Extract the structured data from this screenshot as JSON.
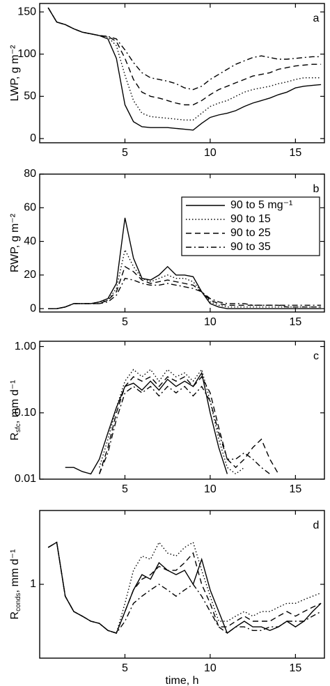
{
  "chart_data": [
    {
      "type": "line",
      "annotation": "a",
      "ylabel": {
        "main": "LWP, g m⁻²"
      },
      "xlim": [
        0,
        16.7
      ],
      "xticks": [
        5,
        10,
        15
      ],
      "ylim": [
        -5,
        160
      ],
      "yticks": [
        0,
        50,
        100,
        150
      ],
      "log": false,
      "x": [
        0.5,
        1,
        1.5,
        2,
        2.5,
        3,
        3.5,
        4,
        4.5,
        5,
        5.5,
        6,
        6.5,
        7,
        7.5,
        8,
        8.5,
        9,
        9.5,
        10,
        10.5,
        11,
        11.5,
        12,
        12.5,
        13,
        13.5,
        14,
        14.5,
        15,
        15.5,
        16,
        16.5
      ],
      "series": [
        {
          "color": "#000000",
          "dash": "solid",
          "values": [
            155,
            138,
            135,
            130,
            126,
            124,
            122,
            118,
            95,
            40,
            20,
            14,
            13,
            13,
            13,
            12,
            11,
            10,
            18,
            25,
            28,
            30,
            33,
            38,
            42,
            45,
            48,
            52,
            55,
            60,
            62,
            63,
            64
          ]
        },
        {
          "color": "#000000",
          "dash": "dotted",
          "values": [
            155,
            138,
            135,
            130,
            126,
            124,
            122,
            120,
            110,
            75,
            45,
            30,
            26,
            25,
            24,
            23,
            22,
            22,
            30,
            38,
            42,
            45,
            50,
            55,
            58,
            60,
            62,
            65,
            67,
            70,
            72,
            72,
            72
          ]
        },
        {
          "color": "#000000",
          "dash": "dashed",
          "values": [
            155,
            138,
            135,
            130,
            126,
            124,
            122,
            121,
            115,
            95,
            70,
            55,
            50,
            48,
            45,
            42,
            40,
            40,
            45,
            52,
            58,
            62,
            66,
            70,
            74,
            76,
            78,
            82,
            84,
            86,
            87,
            88,
            88
          ]
        },
        {
          "color": "#000000",
          "dash": "dashdot",
          "values": [
            155,
            138,
            135,
            130,
            126,
            124,
            122,
            121,
            118,
            105,
            90,
            78,
            72,
            70,
            68,
            65,
            60,
            58,
            62,
            70,
            76,
            82,
            88,
            92,
            96,
            98,
            96,
            94,
            94,
            95,
            96,
            97,
            97
          ]
        }
      ]
    },
    {
      "type": "line",
      "annotation": "b",
      "ylabel": {
        "main": "RWP, g m⁻²"
      },
      "xlim": [
        0,
        16.7
      ],
      "xticks": [
        5,
        10,
        15
      ],
      "ylim": [
        -2,
        80
      ],
      "yticks": [
        0,
        20,
        40,
        60,
        80
      ],
      "log": false,
      "legend": "top-right",
      "x": [
        0.5,
        1,
        1.5,
        2,
        2.5,
        3,
        3.5,
        4,
        4.5,
        5,
        5.5,
        6,
        6.5,
        7,
        7.5,
        8,
        8.5,
        9,
        9.5,
        10,
        10.5,
        11,
        11.5,
        12,
        12.5,
        13,
        13.5,
        14,
        14.5,
        15,
        15.5,
        16,
        16.5
      ],
      "series": [
        {
          "name": "90 to 5 mg⁻¹",
          "color": "#000000",
          "dash": "solid",
          "values": [
            0,
            0,
            1,
            3,
            3,
            3,
            4,
            6,
            15,
            54,
            30,
            18,
            17,
            20,
            25,
            20,
            20,
            19,
            10,
            3,
            1,
            0,
            0,
            0,
            0,
            0,
            0,
            0,
            0,
            0,
            0,
            0,
            0
          ]
        },
        {
          "name": "90 to 15",
          "color": "#000000",
          "dash": "dotted",
          "values": [
            0,
            0,
            1,
            3,
            3,
            3,
            4,
            5,
            12,
            35,
            25,
            18,
            16,
            18,
            20,
            18,
            18,
            16,
            10,
            4,
            2,
            1,
            1,
            1,
            1,
            1,
            1,
            1,
            1,
            1,
            1,
            1,
            1
          ]
        },
        {
          "name": "90 to 25",
          "color": "#000000",
          "dash": "dashed",
          "values": [
            0,
            0,
            1,
            3,
            3,
            3,
            3,
            5,
            10,
            25,
            22,
            17,
            15,
            16,
            17,
            16,
            15,
            14,
            10,
            5,
            3,
            2,
            2,
            2,
            2,
            2,
            2,
            2,
            1,
            1,
            1,
            1,
            1
          ]
        },
        {
          "name": "90 to 35",
          "color": "#000000",
          "dash": "dashdot",
          "values": [
            0,
            0,
            1,
            3,
            3,
            3,
            3,
            4,
            8,
            18,
            17,
            15,
            14,
            14,
            15,
            14,
            13,
            12,
            10,
            6,
            4,
            3,
            3,
            3,
            2,
            2,
            2,
            2,
            2,
            2,
            2,
            2,
            2
          ]
        }
      ]
    },
    {
      "type": "line",
      "annotation": "c",
      "ylabel": {
        "main": "R",
        "sub": "sfc",
        "rest": ", mm d⁻¹"
      },
      "xlim": [
        0,
        16.7
      ],
      "xticks": [
        5,
        10,
        15
      ],
      "ylim": [
        0.01,
        1.2
      ],
      "log": true,
      "yticks": [
        {
          "value": 0.01,
          "label": "0.01"
        },
        {
          "value": 0.1,
          "label": "0.10"
        },
        {
          "value": 1,
          "label": "1.00"
        }
      ],
      "x": [
        0.5,
        1,
        1.5,
        2,
        2.5,
        3,
        3.5,
        4,
        4.5,
        5,
        5.5,
        6,
        6.5,
        7,
        7.5,
        8,
        8.5,
        9,
        9.5,
        10,
        10.5,
        11,
        11.5,
        12,
        12.5,
        13,
        13.5,
        14,
        14.5,
        15,
        15.5,
        16,
        16.5
      ],
      "series": [
        {
          "color": "#000000",
          "dash": "solid",
          "values": [
            null,
            null,
            0.015,
            0.015,
            0.013,
            0.012,
            0.02,
            0.05,
            0.12,
            0.25,
            0.28,
            0.22,
            0.3,
            0.22,
            0.32,
            0.25,
            0.3,
            0.25,
            0.4,
            0.1,
            0.03,
            0.012,
            null,
            null,
            null,
            null,
            null,
            null,
            null,
            null,
            null,
            null,
            null
          ]
        },
        {
          "color": "#000000",
          "dash": "dotted",
          "values": [
            null,
            null,
            null,
            null,
            null,
            null,
            0.015,
            0.04,
            0.12,
            0.3,
            0.45,
            0.35,
            0.45,
            0.3,
            0.45,
            0.35,
            0.4,
            0.3,
            0.45,
            0.15,
            0.04,
            0.015,
            0.012,
            0.015,
            null,
            null,
            null,
            null,
            null,
            null,
            null,
            null,
            null
          ]
        },
        {
          "color": "#000000",
          "dash": "dashed",
          "values": [
            null,
            null,
            null,
            null,
            null,
            null,
            0.012,
            0.03,
            0.1,
            0.25,
            0.35,
            0.3,
            0.35,
            0.25,
            0.35,
            0.3,
            0.35,
            0.25,
            0.35,
            0.2,
            0.06,
            0.02,
            0.015,
            0.02,
            0.03,
            0.04,
            0.02,
            0.012,
            null,
            null,
            null,
            null,
            null
          ]
        },
        {
          "color": "#000000",
          "dash": "dashdot",
          "values": [
            null,
            null,
            null,
            null,
            null,
            null,
            0.012,
            0.025,
            0.08,
            0.2,
            0.25,
            0.2,
            0.25,
            0.18,
            0.25,
            0.2,
            0.25,
            0.18,
            0.25,
            0.15,
            0.05,
            0.02,
            0.02,
            0.025,
            0.02,
            0.015,
            0.012,
            null,
            null,
            null,
            null,
            null,
            null
          ]
        }
      ]
    },
    {
      "type": "line",
      "annotation": "d",
      "ylabel": {
        "main": "R",
        "sub": "conds",
        "rest": ", mm d⁻¹"
      },
      "xlabel": "time, h",
      "xlim": [
        0,
        16.7
      ],
      "xticks": [
        5,
        10,
        15
      ],
      "ylim": [
        0.25,
        4
      ],
      "log": true,
      "yticks": [
        1
      ],
      "x": [
        0.5,
        1,
        1.5,
        2,
        2.5,
        3,
        3.5,
        4,
        4.5,
        5,
        5.5,
        6,
        6.5,
        7,
        7.5,
        8,
        8.5,
        9,
        9.5,
        10,
        10.5,
        11,
        11.5,
        12,
        12.5,
        13,
        13.5,
        14,
        14.5,
        15,
        15.5,
        16,
        16.5
      ],
      "series": [
        {
          "color": "#000000",
          "dash": "solid",
          "values": [
            2.0,
            2.2,
            0.8,
            0.6,
            0.55,
            0.5,
            0.48,
            0.42,
            0.4,
            0.6,
            0.9,
            1.2,
            1.1,
            1.5,
            1.3,
            1.2,
            1.3,
            1.0,
            1.6,
            0.9,
            0.6,
            0.4,
            0.45,
            0.5,
            0.45,
            0.45,
            0.42,
            0.45,
            0.5,
            0.45,
            0.5,
            0.6,
            0.7
          ]
        },
        {
          "color": "#000000",
          "dash": "dotted",
          "values": [
            2.0,
            2.2,
            0.8,
            0.6,
            0.55,
            0.5,
            0.48,
            0.42,
            0.4,
            0.7,
            1.3,
            1.7,
            1.6,
            2.2,
            1.8,
            1.7,
            2.0,
            2.2,
            1.3,
            0.8,
            0.5,
            0.5,
            0.55,
            0.6,
            0.55,
            0.6,
            0.6,
            0.65,
            0.7,
            0.7,
            0.75,
            0.8,
            0.85
          ]
        },
        {
          "color": "#000000",
          "dash": "dashed",
          "values": [
            2.0,
            2.2,
            0.8,
            0.6,
            0.55,
            0.5,
            0.48,
            0.42,
            0.4,
            0.6,
            0.9,
            1.1,
            1.2,
            1.4,
            1.3,
            1.3,
            1.5,
            1.8,
            1.0,
            0.7,
            0.45,
            0.45,
            0.5,
            0.55,
            0.5,
            0.5,
            0.5,
            0.55,
            0.6,
            0.55,
            0.6,
            0.65,
            0.7
          ]
        },
        {
          "color": "#000000",
          "dash": "dashdot",
          "values": [
            2.0,
            2.2,
            0.8,
            0.6,
            0.55,
            0.5,
            0.48,
            0.42,
            0.4,
            0.5,
            0.7,
            0.8,
            0.9,
            1.0,
            0.9,
            0.8,
            0.9,
            1.0,
            0.8,
            0.6,
            0.45,
            0.4,
            0.45,
            0.45,
            0.42,
            0.42,
            0.45,
            0.45,
            0.5,
            0.5,
            0.5,
            0.55,
            0.6
          ]
        }
      ]
    }
  ]
}
